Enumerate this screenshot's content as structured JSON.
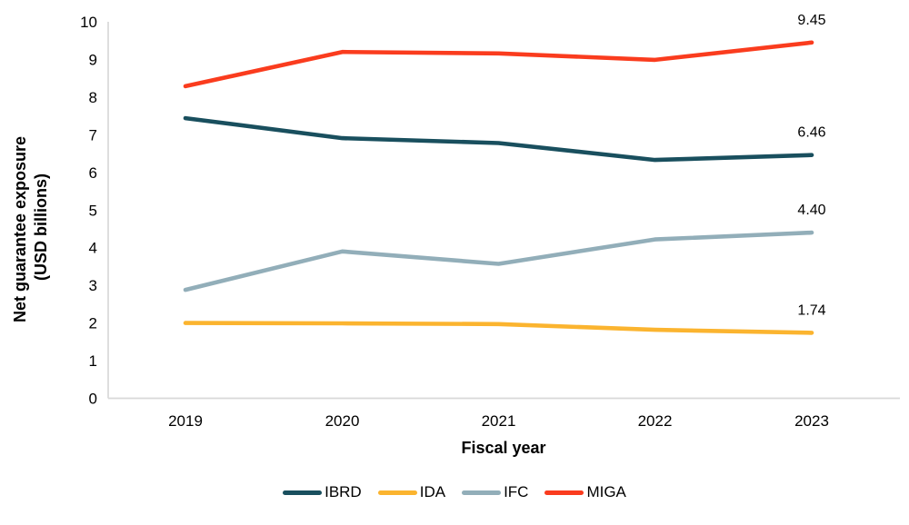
{
  "chart_data": {
    "type": "line",
    "title": "",
    "xlabel": "Fiscal year",
    "ylabel_lines": [
      "Net guarantee exposure",
      "(USD billions)"
    ],
    "x_categories": [
      "2019",
      "2020",
      "2021",
      "2022",
      "2023"
    ],
    "yticks": [
      0,
      1,
      2,
      3,
      4,
      5,
      6,
      7,
      8,
      9,
      10
    ],
    "ylim": [
      0,
      10
    ],
    "grid": false,
    "legend_position": "bottom",
    "axis_color": "#D9D9D9",
    "text_color": "#000000",
    "series": [
      {
        "name": "IBRD",
        "color": "#194F5E",
        "values": [
          7.44,
          6.91,
          6.78,
          6.33,
          6.46
        ],
        "end_label": "6.46"
      },
      {
        "name": "IDA",
        "color": "#FBB42F",
        "values": [
          2.0,
          1.99,
          1.97,
          1.82,
          1.74
        ],
        "end_label": "1.74"
      },
      {
        "name": "IFC",
        "color": "#92AEB9",
        "values": [
          2.88,
          3.9,
          3.57,
          4.22,
          4.4
        ],
        "end_label": "4.40"
      },
      {
        "name": "MIGA",
        "color": "#FA3C1E",
        "values": [
          8.29,
          9.2,
          9.16,
          8.99,
          9.45
        ],
        "end_label": "9.45"
      }
    ]
  }
}
